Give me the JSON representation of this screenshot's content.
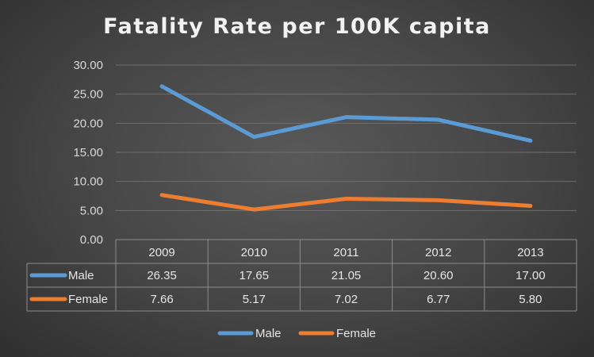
{
  "chart_data": {
    "type": "line",
    "title": "Fatality Rate per 100K capita",
    "categories": [
      "2009",
      "2010",
      "2011",
      "2012",
      "2013"
    ],
    "series": [
      {
        "name": "Male",
        "values": [
          26.35,
          17.65,
          21.05,
          20.6,
          17.0
        ],
        "labels": [
          "26.35",
          "17.65",
          "21.05",
          "20.60",
          "17.00"
        ],
        "color": "#5b9bd5"
      },
      {
        "name": "Female",
        "values": [
          7.66,
          5.17,
          7.02,
          6.77,
          5.8
        ],
        "labels": [
          "7.66",
          "5.17",
          "7.02",
          "6.77",
          "5.80"
        ],
        "color": "#ed7d31"
      }
    ],
    "ylim": [
      0,
      30
    ],
    "yticks": [
      "0.00",
      "5.00",
      "10.00",
      "15.00",
      "20.00",
      "25.00",
      "30.00"
    ],
    "grid": true,
    "data_table": true,
    "legend_position": "bottom"
  }
}
